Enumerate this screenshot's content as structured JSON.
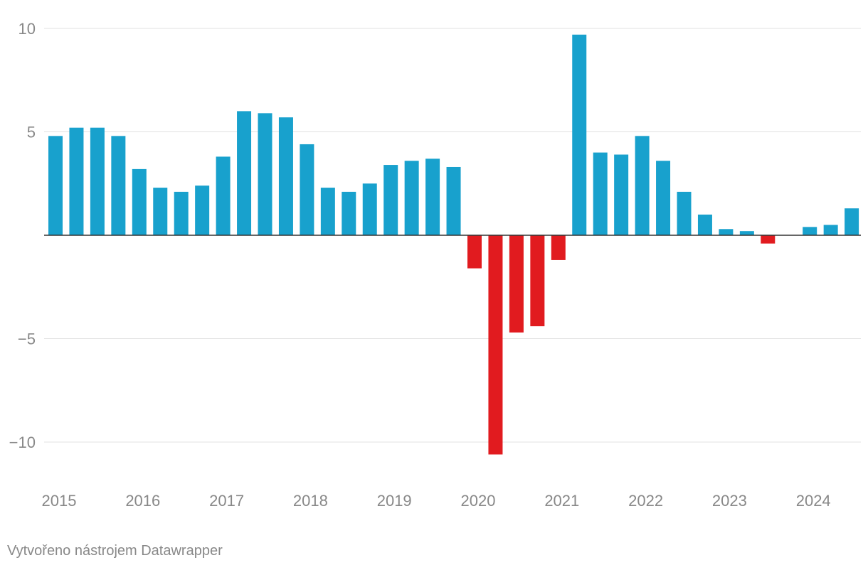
{
  "chart_data": {
    "type": "bar",
    "categories": [
      "2015-Q1",
      "2015-Q2",
      "2015-Q3",
      "2015-Q4",
      "2016-Q1",
      "2016-Q2",
      "2016-Q3",
      "2016-Q4",
      "2017-Q1",
      "2017-Q2",
      "2017-Q3",
      "2017-Q4",
      "2018-Q1",
      "2018-Q2",
      "2018-Q3",
      "2018-Q4",
      "2019-Q1",
      "2019-Q2",
      "2019-Q3",
      "2019-Q4",
      "2020-Q1",
      "2020-Q2",
      "2020-Q3",
      "2020-Q4",
      "2021-Q1",
      "2021-Q2",
      "2021-Q3",
      "2021-Q4",
      "2022-Q1",
      "2022-Q2",
      "2022-Q3",
      "2022-Q4",
      "2023-Q1",
      "2023-Q2",
      "2023-Q3",
      "2023-Q4",
      "2024-Q1",
      "2024-Q2",
      "2024-Q3"
    ],
    "values": [
      4.8,
      5.2,
      5.2,
      4.8,
      3.2,
      2.3,
      2.1,
      2.4,
      3.8,
      6.0,
      5.9,
      5.7,
      4.4,
      2.3,
      2.1,
      2.5,
      3.4,
      3.6,
      3.7,
      3.3,
      -1.6,
      -10.6,
      -4.7,
      -4.4,
      -1.2,
      9.7,
      4.0,
      3.9,
      4.8,
      3.6,
      2.1,
      1.0,
      0.3,
      0.2,
      -0.4,
      0.0,
      0.4,
      0.5,
      1.3
    ],
    "x_tick_labels": [
      "2015",
      "2016",
      "2017",
      "2018",
      "2019",
      "2020",
      "2021",
      "2022",
      "2023",
      "2024"
    ],
    "y_ticks": [
      10,
      5,
      -5,
      -10
    ],
    "y_tick_labels": [
      "10",
      "5",
      "−5",
      "−10"
    ],
    "ylim": [
      -12,
      10.5
    ],
    "title": "",
    "xlabel": "",
    "ylabel": "",
    "grid": true,
    "colors": {
      "positive": "#18a1cd",
      "negative": "#e11b1f",
      "grid": "#e0e0e0",
      "zero_line": "#333333",
      "tick_text": "#888888"
    }
  },
  "credit": "Vytvořeno nástrojem Datawrapper"
}
